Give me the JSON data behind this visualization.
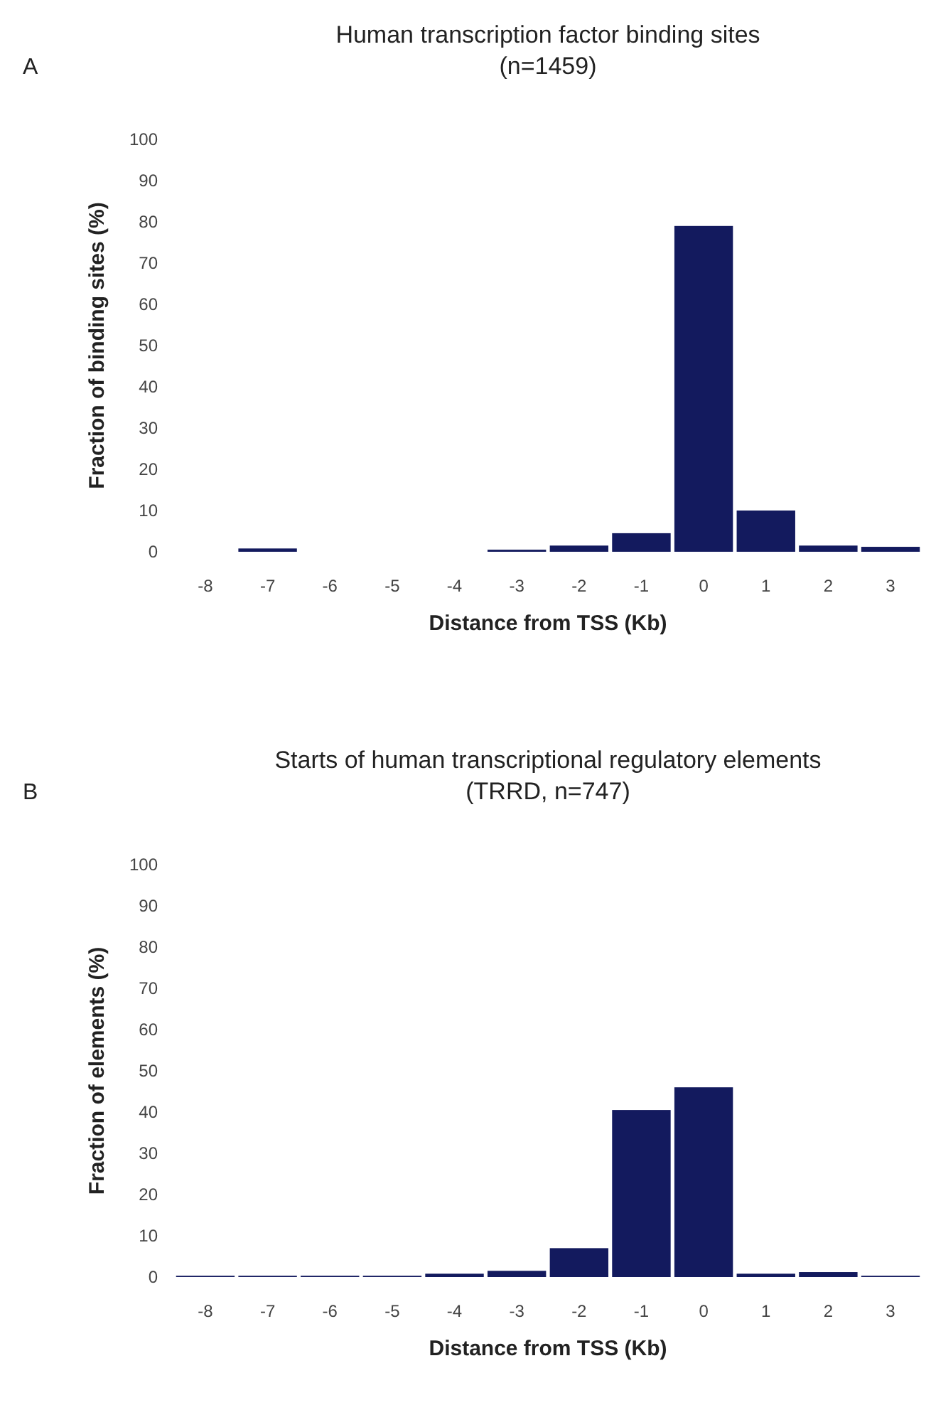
{
  "chart_data": [
    {
      "type": "bar",
      "title": "Human transcription factor binding sites",
      "subtitle": "(n=1459)",
      "annotations": [
        "A"
      ],
      "xlabel": "Distance from TSS (Kb)",
      "ylabel": "Fraction of binding sites (%)",
      "categories": [
        "-8",
        "-7",
        "-6",
        "-5",
        "-4",
        "-3",
        "-2",
        "-1",
        "0",
        "1",
        "2",
        "3"
      ],
      "values": [
        0,
        0.8,
        0,
        0,
        0,
        0.5,
        1.5,
        4.5,
        79,
        10,
        1.5,
        1.2
      ],
      "color": "#131a5e",
      "ylim": [
        0,
        100
      ],
      "yticks": [
        0,
        10,
        20,
        30,
        40,
        50,
        60,
        70,
        80,
        90,
        100
      ],
      "grid": false
    },
    {
      "type": "bar",
      "title": "Starts of human transcriptional regulatory elements",
      "subtitle": "(TRRD, n=747)",
      "annotations": [
        "B"
      ],
      "xlabel": "Distance from TSS (Kb)",
      "ylabel": "Fraction of elements (%)",
      "categories": [
        "-8",
        "-7",
        "-6",
        "-5",
        "-4",
        "-3",
        "-2",
        "-1",
        "0",
        "1",
        "2",
        "3"
      ],
      "values": [
        0.3,
        0.3,
        0.3,
        0.3,
        0.8,
        1.5,
        7,
        40.5,
        46,
        0.8,
        1.2,
        0.3
      ],
      "color": "#131a5e",
      "ylim": [
        0,
        100
      ],
      "yticks": [
        0,
        10,
        20,
        30,
        40,
        50,
        60,
        70,
        80,
        90,
        100
      ],
      "grid": false
    }
  ]
}
